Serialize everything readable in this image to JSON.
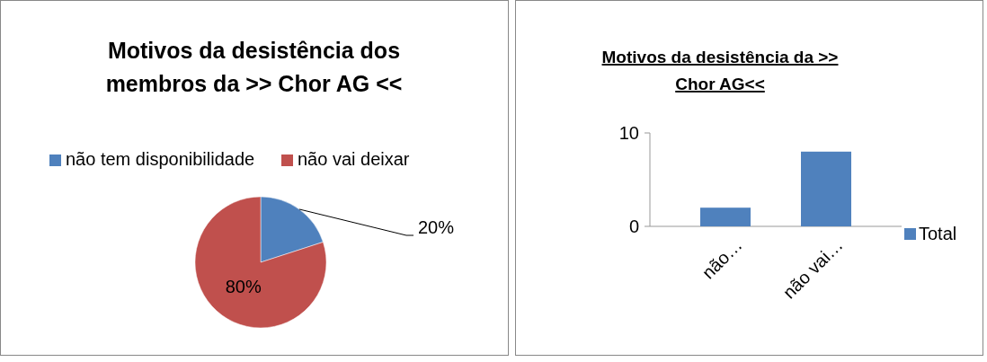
{
  "chart_data": [
    {
      "type": "pie",
      "title": "Motivos da desistência dos membros  da  >> Chor AG <<",
      "categories": [
        "não tem disponibilidade",
        "não vai deixar"
      ],
      "values": [
        20,
        80
      ],
      "colors": [
        "#4f81bd",
        "#c0504d"
      ],
      "value_labels": [
        "20%",
        "80%"
      ],
      "legend": "top"
    },
    {
      "type": "bar",
      "title": "Motivos da desistência  da  >> Chor AG<<",
      "categories": [
        "não…",
        "não vai…"
      ],
      "series": [
        {
          "name": "Total",
          "color": "#4f81bd",
          "values": [
            2,
            8
          ]
        }
      ],
      "ylim": [
        0,
        10
      ],
      "yticks": [
        0,
        10
      ],
      "legend": "right"
    }
  ]
}
